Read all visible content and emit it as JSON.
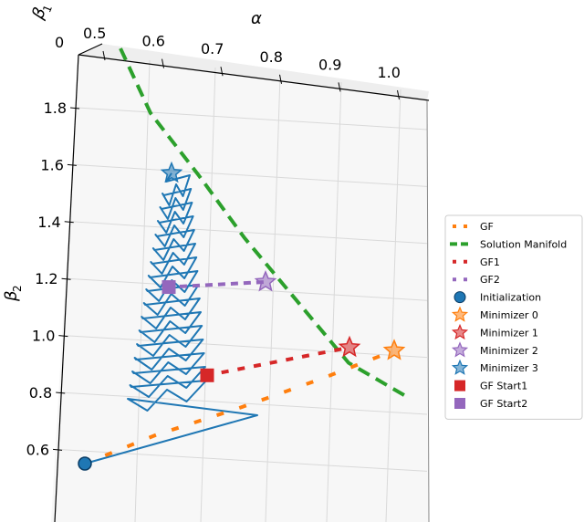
{
  "chart_data": {
    "type": "line",
    "projection": "3d",
    "axes": {
      "alpha": {
        "label": "α",
        "ticks": [
          "0.5",
          "0.6",
          "0.7",
          "0.8",
          "0.9",
          "1.0"
        ]
      },
      "beta1": {
        "label": "β",
        "sub": "1",
        "ticks": [
          "0"
        ]
      },
      "beta2": {
        "label": "β",
        "sub": "2",
        "ticks": [
          "0.6",
          "0.8",
          "1.0",
          "1.2",
          "1.4",
          "1.6",
          "1.8"
        ]
      }
    },
    "legend": {
      "placement": "right",
      "entries": [
        {
          "key": "gf",
          "label": "GF",
          "marker": "dotted-line",
          "color": "#ff7f0e"
        },
        {
          "key": "manifold",
          "label": "Solution Manifold",
          "marker": "dashed-line",
          "color": "#2ca02c"
        },
        {
          "key": "gf1",
          "label": "GF1",
          "marker": "dotted-line",
          "color": "#d62728"
        },
        {
          "key": "gf2",
          "label": "GF2",
          "marker": "dotted-line",
          "color": "#9467bd"
        },
        {
          "key": "init",
          "label": "Initialization",
          "marker": "circle",
          "color": "#1f77b4"
        },
        {
          "key": "min0",
          "label": "Minimizer 0",
          "marker": "star",
          "color": "#ff7f0e"
        },
        {
          "key": "min1",
          "label": "Minimizer 1",
          "marker": "star",
          "color": "#d62728"
        },
        {
          "key": "min2",
          "label": "Minimizer 2",
          "marker": "star",
          "color": "#9467bd"
        },
        {
          "key": "min3",
          "label": "Minimizer 3",
          "marker": "star",
          "color": "#1f77b4"
        },
        {
          "key": "gfs1",
          "label": "GF Start1",
          "marker": "square",
          "color": "#d62728"
        },
        {
          "key": "gfs2",
          "label": "GF Start2",
          "marker": "square",
          "color": "#9467bd"
        }
      ]
    },
    "series": [
      {
        "key": "manifold",
        "beta2": [
          1.96,
          1.8,
          1.6,
          1.4,
          1.2,
          1.0,
          0.9
        ]
      },
      {
        "key": "gf",
        "beta2": [
          0.55,
          0.63,
          0.71,
          0.79,
          0.87
        ]
      },
      {
        "key": "gf1",
        "beta2": [
          0.86,
          0.99
        ]
      },
      {
        "key": "gf2",
        "beta2": [
          1.17,
          1.22
        ]
      }
    ],
    "points": [
      {
        "key": "init",
        "beta2": 0.55
      },
      {
        "key": "min0",
        "beta2": 0.87
      },
      {
        "key": "min1",
        "beta2": 0.99
      },
      {
        "key": "min2",
        "beta2": 1.22
      },
      {
        "key": "min3",
        "beta2": 1.57
      },
      {
        "key": "gfs1",
        "beta2": 0.86
      },
      {
        "key": "gfs2",
        "beta2": 1.17
      }
    ]
  }
}
